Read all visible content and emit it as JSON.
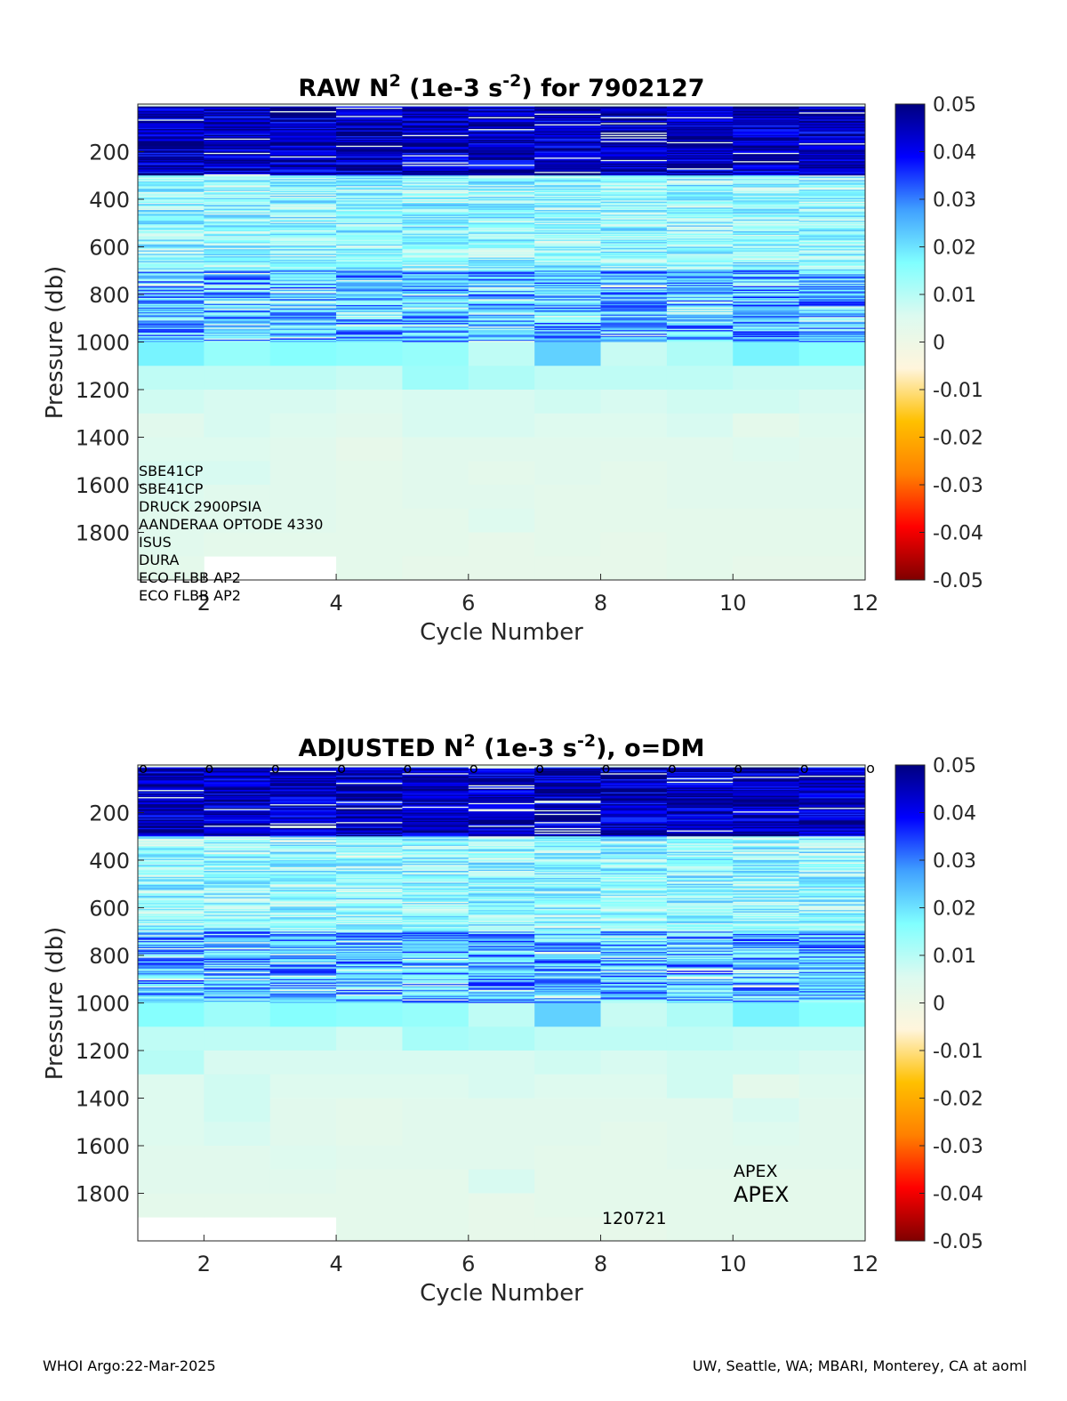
{
  "footer": {
    "left": "WHOI Argo:22-Mar-2025",
    "right": "UW, Seattle, WA; MBARI, Monterey, CA at aoml"
  },
  "colormap": {
    "stops": [
      "#7f0000",
      "#ff0000",
      "#ff8000",
      "#ffc000",
      "#fff5dc",
      "#dcfaf0",
      "#80ffff",
      "#40a0ff",
      "#0000ff",
      "#00007f"
    ],
    "range": [
      -0.05,
      0.05
    ]
  },
  "chart_data": [
    {
      "type": "heatmap",
      "title": "RAW N^2 (1e-3 s^-2) for 7902127",
      "title_parts": {
        "a": "RAW N",
        "sup1": "2",
        "b": " (1e-3 s",
        "sup2": "-2",
        "c": ") for 7902127"
      },
      "xlabel": "Cycle Number",
      "ylabel": "Pressure (db)",
      "xlim": [
        1,
        12
      ],
      "ylim": [
        0,
        2000
      ],
      "y_reversed": true,
      "xticks": [
        2,
        4,
        6,
        8,
        10,
        12
      ],
      "yticks": [
        200,
        400,
        600,
        800,
        1000,
        1200,
        1400,
        1600,
        1800
      ],
      "colorbar": {
        "range": [
          -0.05,
          0.05
        ],
        "ticks": [
          "0.05",
          "0.04",
          "0.03",
          "0.02",
          "0.01",
          "0",
          "-0.01",
          "-0.02",
          "-0.03",
          "-0.04",
          "-0.05"
        ]
      },
      "cycles": [
        1,
        2,
        3,
        4,
        5,
        6,
        7,
        8,
        9,
        10,
        11
      ],
      "profile_max_pressure": [
        2000,
        1900,
        1900,
        2000,
        2000,
        2000,
        2000,
        2000,
        2000,
        2000,
        2000
      ],
      "deep_layers": {
        "pressure_edges": [
          1000,
          1100,
          1200,
          1300,
          1400,
          1500,
          1600,
          1700,
          1800,
          1900,
          2000
        ],
        "values": [
          [
            0.018,
            0.009,
            0.007,
            0.004,
            0.005,
            0.006,
            0.005,
            0.004,
            0.004,
            0.003
          ],
          [
            0.014,
            0.009,
            0.006,
            0.006,
            0.005,
            0.006,
            0.004,
            0.004,
            0.003,
            0.003
          ],
          [
            0.016,
            0.009,
            0.006,
            0.005,
            0.004,
            0.004,
            0.004,
            0.004,
            0.003,
            0.003
          ],
          [
            0.015,
            0.008,
            0.005,
            0.004,
            0.002,
            0.003,
            0.003,
            0.003,
            0.003,
            0.003
          ],
          [
            0.014,
            0.013,
            0.006,
            0.006,
            0.004,
            0.004,
            0.004,
            0.003,
            0.003,
            0.002
          ],
          [
            0.009,
            0.011,
            0.006,
            0.006,
            0.004,
            0.003,
            0.004,
            0.005,
            0.002,
            0.002
          ],
          [
            0.022,
            0.009,
            0.007,
            0.005,
            0.004,
            0.004,
            0.003,
            0.003,
            0.003,
            0.002
          ],
          [
            0.008,
            0.009,
            0.006,
            0.005,
            0.004,
            0.003,
            0.003,
            0.003,
            0.002,
            0.002
          ],
          [
            0.011,
            0.009,
            0.007,
            0.006,
            0.004,
            0.004,
            0.004,
            0.003,
            0.003,
            0.003
          ],
          [
            0.018,
            0.008,
            0.007,
            0.003,
            0.005,
            0.004,
            0.004,
            0.003,
            0.003,
            0.002
          ],
          [
            0.016,
            0.008,
            0.006,
            0.005,
            0.004,
            0.004,
            0.004,
            0.003,
            0.003,
            0.002
          ]
        ]
      },
      "sensor_list": [
        "SBE41CP",
        "SBE41CP",
        "DRUCK 2900PSIA",
        "AANDERAA OPTODE 4330",
        "ISUS",
        "DURA",
        "ECO FLBB AP2",
        "ECO FLBB AP2"
      ]
    },
    {
      "type": "heatmap",
      "title": "ADJUSTED N^2 (1e-3 s^-2), o=DM",
      "title_parts": {
        "a": "ADJUSTED N",
        "sup1": "2",
        "b": " (1e-3 s",
        "sup2": "-2",
        "c": "), o=DM"
      },
      "xlabel": "Cycle Number",
      "ylabel": "Pressure (db)",
      "xlim": [
        1,
        12
      ],
      "ylim": [
        0,
        2000
      ],
      "y_reversed": true,
      "xticks": [
        2,
        4,
        6,
        8,
        10,
        12
      ],
      "yticks": [
        200,
        400,
        600,
        800,
        1000,
        1200,
        1400,
        1600,
        1800
      ],
      "colorbar": {
        "range": [
          -0.05,
          0.05
        ],
        "ticks": [
          "0.05",
          "0.04",
          "0.03",
          "0.02",
          "0.01",
          "0",
          "-0.01",
          "-0.02",
          "-0.03",
          "-0.04",
          "-0.05"
        ]
      },
      "cycles": [
        1,
        2,
        3,
        4,
        5,
        6,
        7,
        8,
        9,
        10,
        11
      ],
      "profile_max_pressure": [
        1900,
        1900,
        1900,
        2000,
        2000,
        2000,
        2000,
        2000,
        2000,
        2000,
        2000
      ],
      "dm_markers": {
        "x": [
          1,
          2,
          3,
          4,
          5,
          6,
          7,
          8,
          9,
          10,
          11,
          12
        ],
        "symbol": "o"
      },
      "deep_layers": {
        "pressure_edges": [
          1000,
          1100,
          1200,
          1300,
          1400,
          1500,
          1600,
          1700,
          1800,
          1900,
          2000
        ],
        "values": [
          [
            0.016,
            0.009,
            0.01,
            0.005,
            0.005,
            0.005,
            0.004,
            0.004,
            0.003,
            0.003
          ],
          [
            0.013,
            0.009,
            0.006,
            0.007,
            0.007,
            0.006,
            0.004,
            0.004,
            0.003,
            0.003
          ],
          [
            0.016,
            0.009,
            0.006,
            0.005,
            0.004,
            0.004,
            0.005,
            0.004,
            0.003,
            0.003
          ],
          [
            0.015,
            0.007,
            0.006,
            0.005,
            0.003,
            0.003,
            0.004,
            0.003,
            0.003,
            0.003
          ],
          [
            0.014,
            0.012,
            0.006,
            0.005,
            0.004,
            0.004,
            0.004,
            0.003,
            0.003,
            0.003
          ],
          [
            0.009,
            0.011,
            0.006,
            0.006,
            0.004,
            0.004,
            0.004,
            0.006,
            0.002,
            0.002
          ],
          [
            0.022,
            0.009,
            0.007,
            0.005,
            0.004,
            0.004,
            0.003,
            0.003,
            0.003,
            0.002
          ],
          [
            0.008,
            0.009,
            0.006,
            0.005,
            0.004,
            0.003,
            0.003,
            0.003,
            0.003,
            0.002
          ],
          [
            0.011,
            0.009,
            0.007,
            0.007,
            0.004,
            0.004,
            0.004,
            0.003,
            0.003,
            0.003
          ],
          [
            0.018,
            0.008,
            0.007,
            0.003,
            0.006,
            0.005,
            0.004,
            0.003,
            0.003,
            0.003
          ],
          [
            0.016,
            0.008,
            0.006,
            0.005,
            0.004,
            0.004,
            0.004,
            0.003,
            0.003,
            0.003
          ]
        ]
      },
      "annotations": {
        "platform_small": "APEX",
        "platform_large": "APEX",
        "wmo_inst_type": "120721"
      }
    }
  ]
}
